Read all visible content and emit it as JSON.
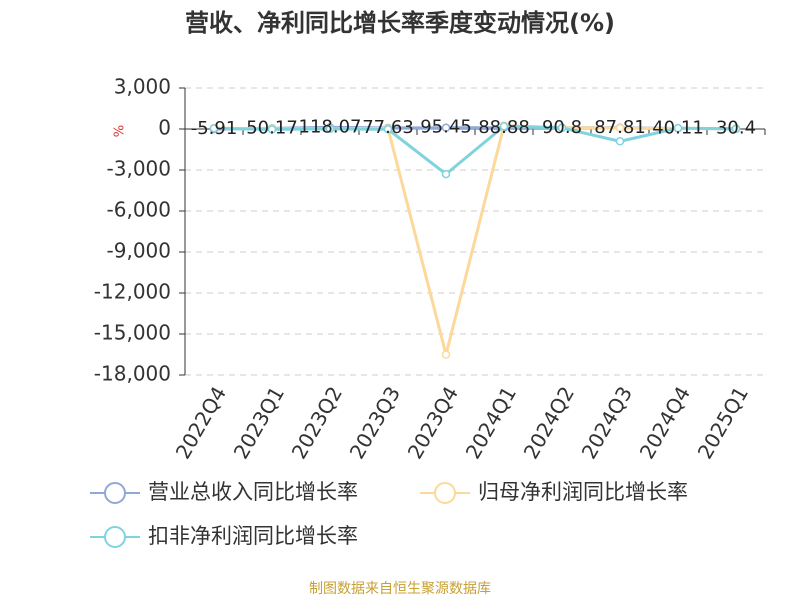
{
  "chart_data": {
    "type": "line",
    "title": "营收、净利同比增长率季度变动情况(%)",
    "y_label": "%",
    "source": "制图数据来自恒生聚源数据库",
    "categories": [
      "2022Q4",
      "2023Q1",
      "2023Q2",
      "2023Q3",
      "2023Q4",
      "2024Q1",
      "2024Q2",
      "2024Q3",
      "2024Q4",
      "2025Q1"
    ],
    "series": [
      {
        "name": "营业总收入同比增长率",
        "color": "#8fa8d8",
        "values": [
          -5.91,
          50.17,
          118.07,
          77.63,
          95.45,
          88.88,
          90.8,
          87.81,
          40.11,
          30.4
        ]
      },
      {
        "name": "归母净利润同比增长率",
        "color": "#fcd99a",
        "values": [
          60,
          20,
          30,
          40,
          -16500,
          250,
          100,
          60,
          40,
          20
        ]
      },
      {
        "name": "扣非净利润同比增长率",
        "color": "#7fd3dd",
        "values": [
          50,
          -30,
          10,
          -20,
          -3300,
          200,
          80,
          -900,
          60,
          10
        ]
      }
    ],
    "ylim": [
      -18000,
      3000
    ],
    "yticks": [
      {
        "value": -18000,
        "label": "-18,000"
      },
      {
        "value": -15000,
        "label": "-15,000"
      },
      {
        "value": -12000,
        "label": "-12,000"
      },
      {
        "value": -9000,
        "label": "-9,000"
      },
      {
        "value": -6000,
        "label": "-6,000"
      },
      {
        "value": -3000,
        "label": "-3,000"
      },
      0,
      {
        "value": 3000,
        "label": "3,000"
      }
    ],
    "grid": true
  }
}
